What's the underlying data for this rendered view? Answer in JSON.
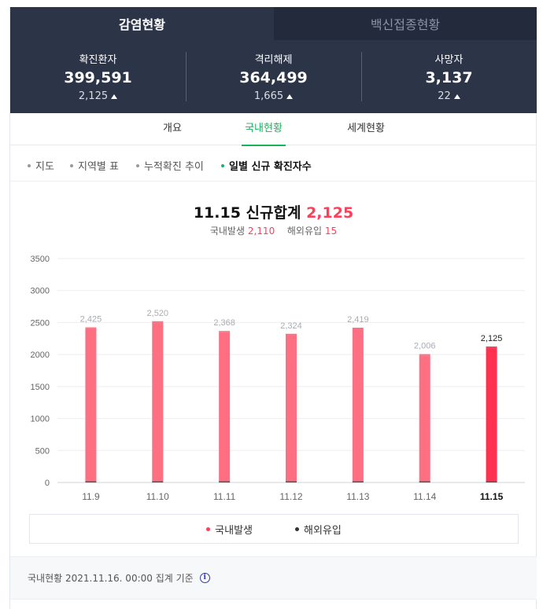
{
  "top_tabs": [
    {
      "label": "감염현황",
      "active": true
    },
    {
      "label": "백신접종현황",
      "active": false
    }
  ],
  "stats": [
    {
      "label": "확진환자",
      "value": "399,591",
      "delta": "2,125"
    },
    {
      "label": "격리해제",
      "value": "364,499",
      "delta": "1,665"
    },
    {
      "label": "사망자",
      "value": "3,137",
      "delta": "22"
    }
  ],
  "sub_tabs": [
    {
      "label": "개요",
      "active": false
    },
    {
      "label": "국내현황",
      "active": true
    },
    {
      "label": "세계현황",
      "active": false
    }
  ],
  "chips": [
    {
      "label": "지도",
      "active": false
    },
    {
      "label": "지역별 표",
      "active": false
    },
    {
      "label": "누적확진 추이",
      "active": false
    },
    {
      "label": "일별 신규 확진자수",
      "active": true
    }
  ],
  "chart_header": {
    "title_prefix": "11.15 신규합계",
    "title_total": "2,125",
    "domestic_label": "국내발생",
    "domestic_value": "2,110",
    "overseas_label": "해외유입",
    "overseas_value": "15"
  },
  "colors": {
    "domestic": "#ff6f82",
    "domestic_latest": "#ff3150",
    "overseas": "#555555",
    "accent_green": "#19b35b",
    "header_bg": "#2c3447"
  },
  "chart_data": {
    "type": "bar",
    "stacked": true,
    "categories": [
      "11.9",
      "11.10",
      "11.11",
      "11.12",
      "11.13",
      "11.14",
      "11.15"
    ],
    "series": [
      {
        "name": "국내발생",
        "values": [
          2410,
          2498,
          2348,
          2303,
          2395,
          1988,
          2110
        ]
      },
      {
        "name": "해외유입",
        "values": [
          15,
          22,
          20,
          21,
          24,
          18,
          15
        ]
      }
    ],
    "totals": [
      2425,
      2520,
      2368,
      2324,
      2419,
      2006,
      2125
    ],
    "total_labels": [
      "2,425",
      "2,520",
      "2,368",
      "2,324",
      "2,419",
      "2,006",
      "2,125"
    ],
    "y_ticks": [
      "3500",
      "3000",
      "2500",
      "2000",
      "1500",
      "1000",
      "500",
      "0"
    ],
    "ylim": [
      0,
      3500
    ],
    "highlight_index": 6,
    "grid": true,
    "legend": "bottom"
  },
  "legend": [
    {
      "label": "국내발생",
      "color": "#ff3e5a"
    },
    {
      "label": "해외유입",
      "color": "#333333"
    }
  ],
  "footer": {
    "text": "국내현황 2021.11.16. 00:00 집계 기준"
  }
}
